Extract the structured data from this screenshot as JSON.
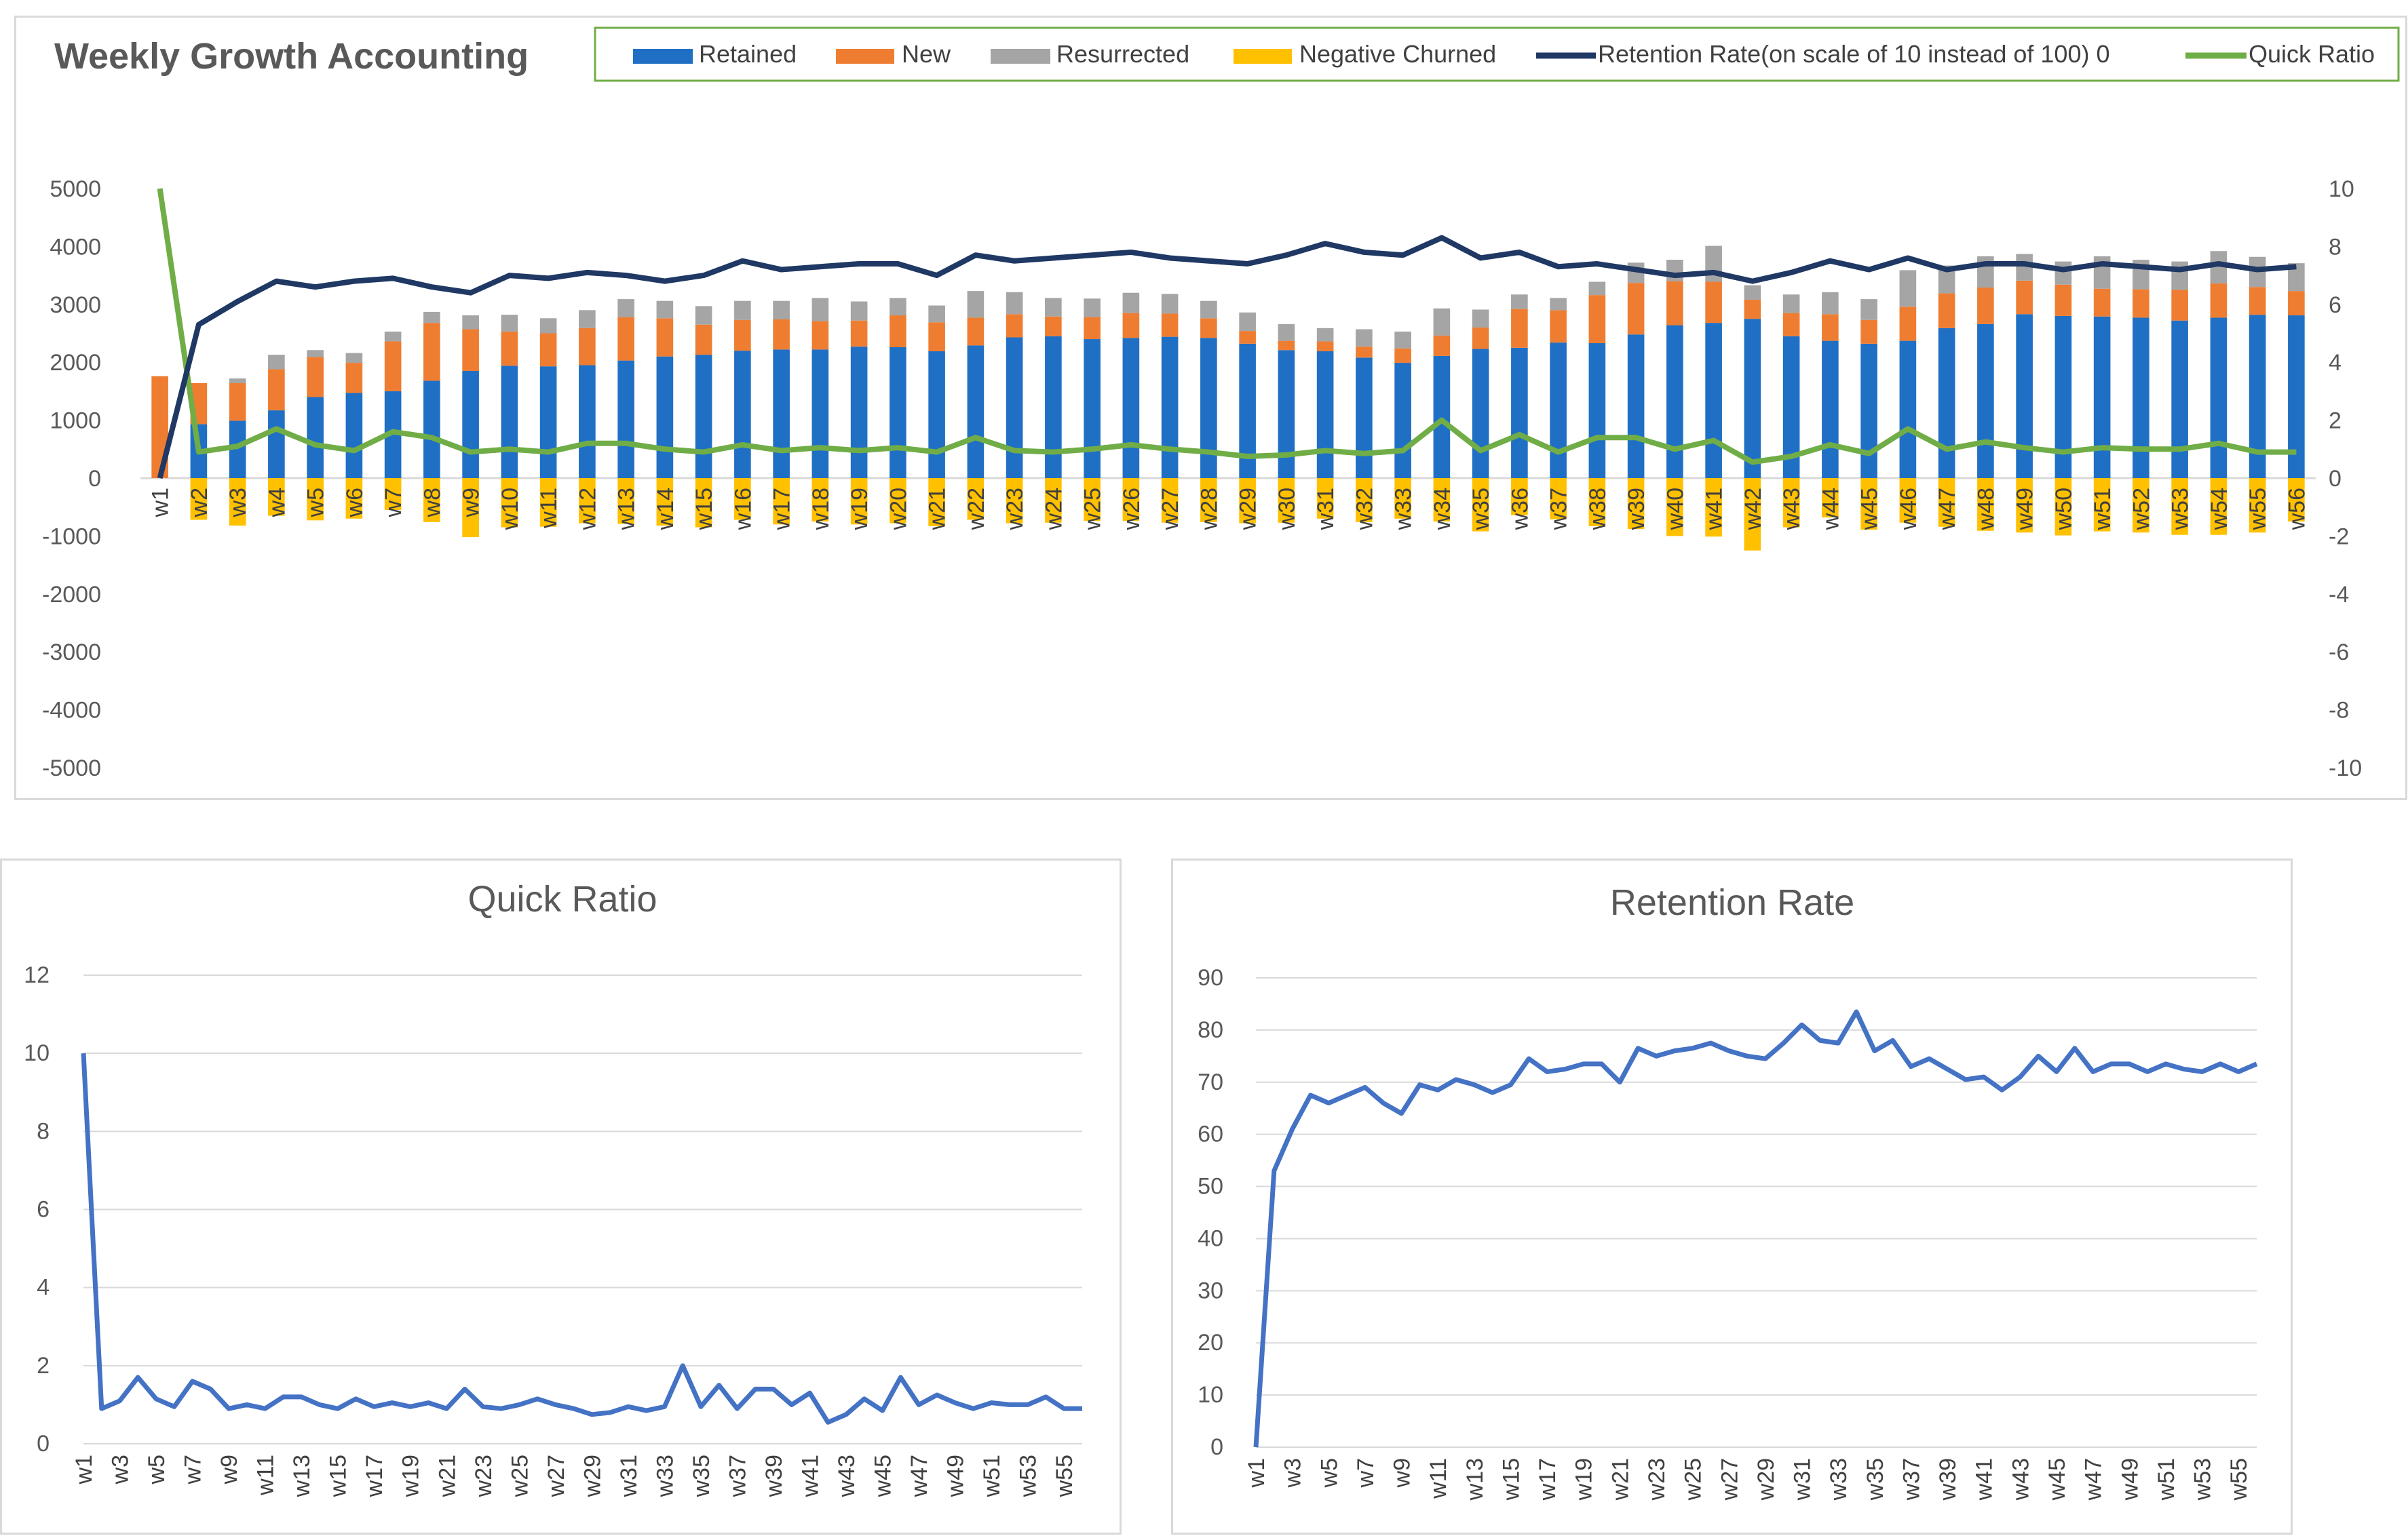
{
  "main_chart": {
    "title": "Weekly Growth Accounting",
    "left_axis_ticks": [
      5000,
      4000,
      3000,
      2000,
      1000,
      0,
      -1000,
      -2000,
      -3000,
      -4000,
      -5000
    ],
    "right_axis_ticks": [
      10,
      8,
      6,
      4,
      2,
      0,
      -2,
      -4,
      -6,
      -8,
      -10
    ],
    "legend": {
      "retained": "Retained",
      "new": "New",
      "resurrected": "Resurrected",
      "negative_churned": "Negative Churned",
      "retention_rate": "Retention Rate(on scale of 10 instead of 100) 0",
      "quick_ratio": "Quick Ratio"
    },
    "colors": {
      "retained": "#1f6fc5",
      "new": "#ef7d31",
      "resurrected": "#a5a5a5",
      "negative_churned": "#ffc000",
      "retention_rate": "#1f3864",
      "quick_ratio": "#70ad47"
    }
  },
  "quick_chart": {
    "title": "Quick Ratio",
    "y_ticks": [
      12,
      10,
      8,
      6,
      4,
      2,
      0
    ],
    "color": "#4472c4"
  },
  "retention_chart": {
    "title": "Retention Rate",
    "y_ticks": [
      90,
      80,
      70,
      60,
      50,
      40,
      30,
      20,
      10,
      0
    ],
    "color": "#4472c4"
  },
  "chart_data": [
    {
      "type": "bar",
      "title": "Weekly Growth Accounting",
      "ylim": [
        -5000,
        5000
      ],
      "y2lim": [
        -10,
        10
      ],
      "legend_position": "top-right",
      "categories": [
        "w1",
        "w2",
        "w3",
        "w4",
        "w5",
        "w6",
        "w7",
        "w8",
        "w9",
        "w10",
        "w11",
        "w12",
        "w13",
        "w14",
        "w15",
        "w16",
        "w17",
        "w18",
        "w19",
        "w20",
        "w21",
        "w22",
        "w23",
        "w24",
        "w25",
        "w26",
        "w27",
        "w28",
        "w29",
        "w30",
        "w31",
        "w32",
        "w33",
        "w34",
        "w35",
        "w36",
        "w37",
        "w38",
        "w39",
        "w40",
        "w41",
        "w42",
        "w43",
        "w44",
        "w45",
        "w46",
        "w47",
        "w48",
        "w49",
        "w50",
        "w51",
        "w52",
        "w53",
        "w54",
        "w55",
        "w56"
      ],
      "series": [
        {
          "name": "Retained",
          "values": [
            0,
            930,
            990,
            1170,
            1400,
            1470,
            1500,
            1680,
            1850,
            1940,
            1930,
            1950,
            2030,
            2100,
            2130,
            2200,
            2220,
            2220,
            2270,
            2260,
            2190,
            2290,
            2430,
            2450,
            2400,
            2420,
            2440,
            2420,
            2320,
            2210,
            2190,
            2080,
            1990,
            2110,
            2230,
            2250,
            2340,
            2330,
            2480,
            2640,
            2680,
            2750,
            2450,
            2370,
            2320,
            2370,
            2590,
            2660,
            2830,
            2800,
            2790,
            2770,
            2720,
            2770,
            2820,
            2810
          ]
        },
        {
          "name": "New",
          "values": [
            1760,
            710,
            650,
            710,
            690,
            520,
            860,
            1000,
            720,
            590,
            570,
            640,
            750,
            660,
            520,
            530,
            520,
            490,
            450,
            550,
            500,
            480,
            400,
            340,
            380,
            430,
            400,
            340,
            220,
            160,
            170,
            190,
            250,
            350,
            370,
            670,
            560,
            830,
            890,
            760,
            710,
            330,
            400,
            460,
            410,
            590,
            600,
            630,
            580,
            540,
            480,
            490,
            530,
            590,
            480,
            420
          ]
        },
        {
          "name": "Resurrected",
          "values": [
            0,
            0,
            80,
            250,
            120,
            170,
            170,
            190,
            240,
            290,
            260,
            310,
            310,
            300,
            320,
            330,
            320,
            400,
            330,
            300,
            290,
            460,
            380,
            320,
            320,
            350,
            340,
            300,
            320,
            290,
            230,
            300,
            290,
            470,
            310,
            250,
            210,
            230,
            350,
            370,
            620,
            250,
            320,
            380,
            360,
            630,
            480,
            540,
            460,
            400,
            560,
            510,
            490,
            560,
            520,
            480
          ]
        },
        {
          "name": "Negative Churned",
          "values": [
            0,
            -720,
            -820,
            -650,
            -730,
            -700,
            -550,
            -760,
            -1020,
            -850,
            -840,
            -780,
            -790,
            -820,
            -850,
            -720,
            -800,
            -750,
            -800,
            -780,
            -830,
            -720,
            -780,
            -770,
            -740,
            -740,
            -770,
            -760,
            -780,
            -770,
            -700,
            -760,
            -700,
            -750,
            -920,
            -640,
            -710,
            -830,
            -880,
            -1000,
            -1010,
            -1250,
            -850,
            -680,
            -890,
            -770,
            -840,
            -910,
            -940,
            -990,
            -920,
            -940,
            -980,
            -980,
            -940,
            -750
          ]
        },
        {
          "name": "Retention Rate(on scale of 10 instead of 100) 0",
          "axis": "secondary",
          "values": [
            0,
            5.3,
            6.1,
            6.8,
            6.6,
            6.8,
            6.9,
            6.6,
            6.4,
            7.0,
            6.9,
            7.1,
            7.0,
            6.8,
            7.0,
            7.5,
            7.2,
            7.3,
            7.4,
            7.4,
            7.0,
            7.7,
            7.5,
            7.6,
            7.7,
            7.8,
            7.6,
            7.5,
            7.4,
            7.7,
            8.1,
            7.8,
            7.7,
            8.3,
            7.6,
            7.8,
            7.3,
            7.4,
            7.2,
            7.0,
            7.1,
            6.8,
            7.1,
            7.5,
            7.2,
            7.6,
            7.2,
            7.4,
            7.4,
            7.2,
            7.4,
            7.3,
            7.2,
            7.4,
            7.2,
            7.3
          ]
        },
        {
          "name": "Quick Ratio",
          "axis": "secondary",
          "values": [
            10,
            0.9,
            1.1,
            1.7,
            1.15,
            0.95,
            1.6,
            1.4,
            0.9,
            1.0,
            0.9,
            1.2,
            1.2,
            1.0,
            0.9,
            1.15,
            0.95,
            1.05,
            0.95,
            1.05,
            0.9,
            1.4,
            0.95,
            0.9,
            1.0,
            1.15,
            1.0,
            0.9,
            0.75,
            0.8,
            0.95,
            0.85,
            0.95,
            2.0,
            0.95,
            1.5,
            0.9,
            1.4,
            1.4,
            1.0,
            1.3,
            0.55,
            0.75,
            1.15,
            0.85,
            1.7,
            1.0,
            1.25,
            1.05,
            0.9,
            1.05,
            1.0,
            1.0,
            1.2,
            0.9,
            0.9
          ]
        }
      ]
    },
    {
      "type": "line",
      "title": "Quick Ratio",
      "ylim": [
        0,
        12
      ],
      "grid": true,
      "x": [
        "w1",
        "w2",
        "w3",
        "w4",
        "w5",
        "w6",
        "w7",
        "w8",
        "w9",
        "w10",
        "w11",
        "w12",
        "w13",
        "w14",
        "w15",
        "w16",
        "w17",
        "w18",
        "w19",
        "w20",
        "w21",
        "w22",
        "w23",
        "w24",
        "w25",
        "w26",
        "w27",
        "w28",
        "w29",
        "w30",
        "w31",
        "w32",
        "w33",
        "w34",
        "w35",
        "w36",
        "w37",
        "w38",
        "w39",
        "w40",
        "w41",
        "w42",
        "w43",
        "w44",
        "w45",
        "w46",
        "w47",
        "w48",
        "w49",
        "w50",
        "w51",
        "w52",
        "w53",
        "w54",
        "w55",
        "w56"
      ],
      "x_tick_labels": [
        "w1",
        "w3",
        "w5",
        "w7",
        "w9",
        "w11",
        "w13",
        "w15",
        "w17",
        "w19",
        "w21",
        "w23",
        "w25",
        "w27",
        "w29",
        "w31",
        "w33",
        "w35",
        "w37",
        "w39",
        "w41",
        "w43",
        "w45",
        "w47",
        "w49",
        "w51",
        "w53",
        "w55"
      ],
      "series": [
        {
          "values": [
            10,
            0.9,
            1.1,
            1.7,
            1.15,
            0.95,
            1.6,
            1.4,
            0.9,
            1.0,
            0.9,
            1.2,
            1.2,
            1.0,
            0.9,
            1.15,
            0.95,
            1.05,
            0.95,
            1.05,
            0.9,
            1.4,
            0.95,
            0.9,
            1.0,
            1.15,
            1.0,
            0.9,
            0.75,
            0.8,
            0.95,
            0.85,
            0.95,
            2.0,
            0.95,
            1.5,
            0.9,
            1.4,
            1.4,
            1.0,
            1.3,
            0.55,
            0.75,
            1.15,
            0.85,
            1.7,
            1.0,
            1.25,
            1.05,
            0.9,
            1.05,
            1.0,
            1.0,
            1.2,
            0.9,
            0.9
          ]
        }
      ]
    },
    {
      "type": "line",
      "title": "Retention Rate",
      "ylim": [
        0,
        90
      ],
      "grid": true,
      "x": [
        "w1",
        "w2",
        "w3",
        "w4",
        "w5",
        "w6",
        "w7",
        "w8",
        "w9",
        "w10",
        "w11",
        "w12",
        "w13",
        "w14",
        "w15",
        "w16",
        "w17",
        "w18",
        "w19",
        "w20",
        "w21",
        "w22",
        "w23",
        "w24",
        "w25",
        "w26",
        "w27",
        "w28",
        "w29",
        "w30",
        "w31",
        "w32",
        "w33",
        "w34",
        "w35",
        "w36",
        "w37",
        "w38",
        "w39",
        "w40",
        "w41",
        "w42",
        "w43",
        "w44",
        "w45",
        "w46",
        "w47",
        "w48",
        "w49",
        "w50",
        "w51",
        "w52",
        "w53",
        "w54",
        "w55",
        "w56"
      ],
      "x_tick_labels": [
        "w1",
        "w3",
        "w5",
        "w7",
        "w9",
        "w11",
        "w13",
        "w15",
        "w17",
        "w19",
        "w21",
        "w23",
        "w25",
        "w27",
        "w29",
        "w31",
        "w33",
        "w35",
        "w37",
        "w39",
        "w41",
        "w43",
        "w45",
        "w47",
        "w49",
        "w51",
        "w53",
        "w55"
      ],
      "series": [
        {
          "values": [
            0,
            53,
            61,
            67.5,
            66,
            67.5,
            69,
            66,
            64,
            69.5,
            68.5,
            70.5,
            69.5,
            68,
            69.5,
            74.5,
            72,
            72.5,
            73.5,
            73.5,
            70,
            76.5,
            75,
            76,
            76.5,
            77.5,
            76,
            75,
            74.5,
            77.5,
            81,
            78,
            77.5,
            83.5,
            76,
            78,
            73,
            74.5,
            72.5,
            70.5,
            71,
            68.5,
            71,
            75,
            72,
            76.5,
            72,
            73.5,
            73.5,
            72,
            73.5,
            72.5,
            72,
            73.5,
            72,
            73.5
          ]
        }
      ]
    }
  ]
}
